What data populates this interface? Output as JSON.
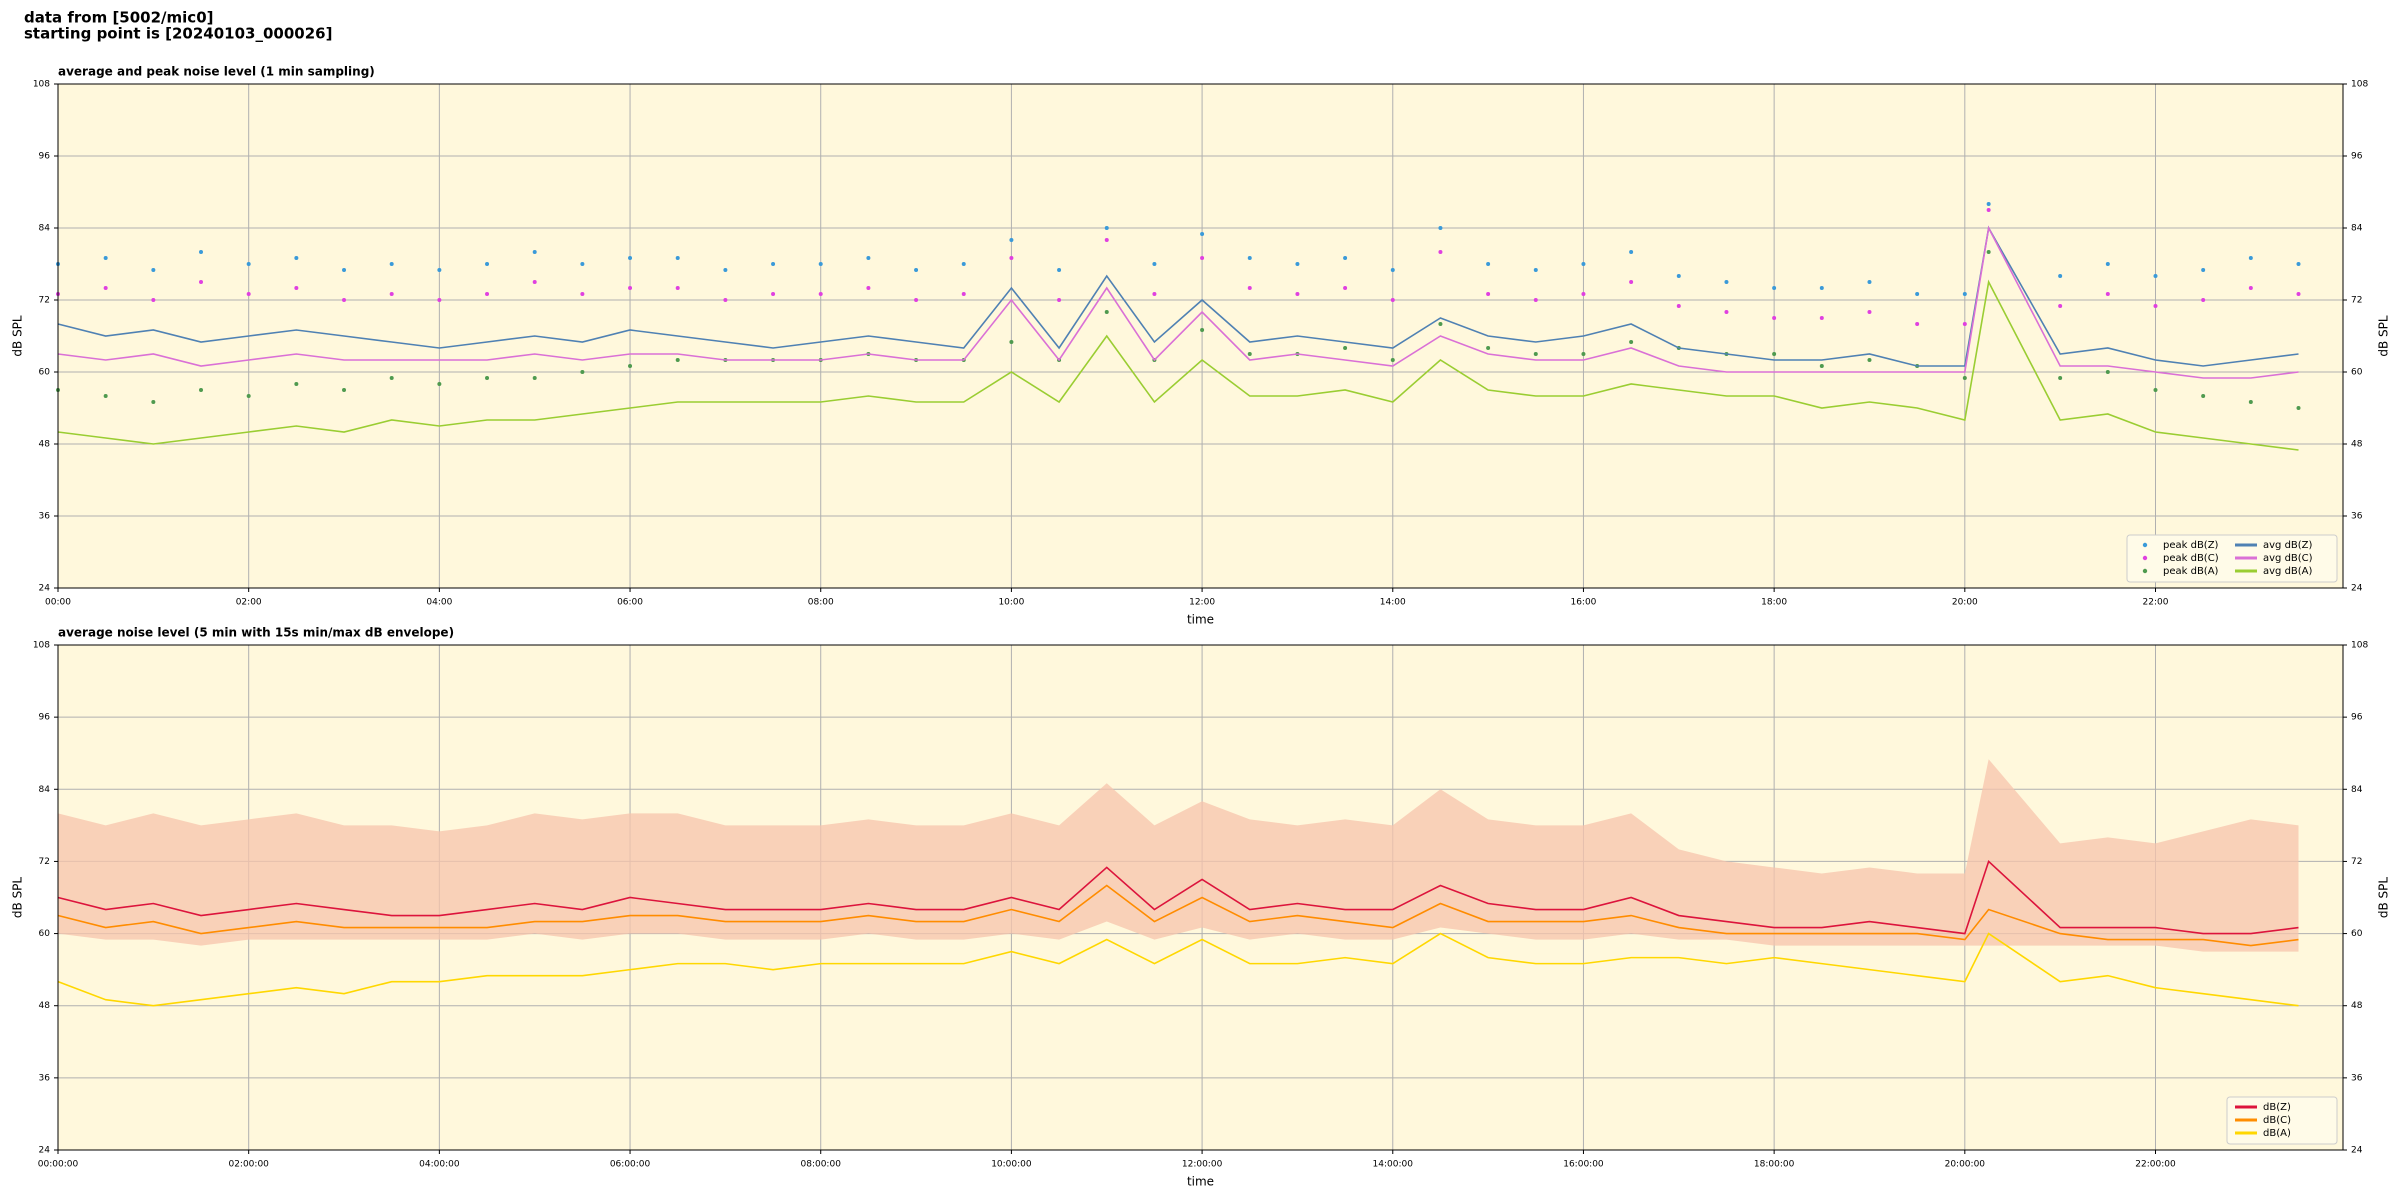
{
  "header": {
    "lines": [
      "data from [5002/mic0]",
      "starting point is [20240103_000026]"
    ]
  },
  "chart_data": [
    {
      "type": "line",
      "title": "average and peak noise level (1 min sampling)",
      "x_label": "time",
      "y_label": "dB SPL",
      "y2_label": "dB SPL",
      "background": "#fff8dc",
      "grid": true,
      "legend": "lower right",
      "legend_columns": 2,
      "xlim": [
        "00:00",
        "23:58"
      ],
      "xticks": [
        "00:00",
        "02:00",
        "04:00",
        "06:00",
        "08:00",
        "10:00",
        "12:00",
        "14:00",
        "16:00",
        "18:00",
        "20:00",
        "22:00"
      ],
      "ylim": [
        24,
        108
      ],
      "yticks": [
        24,
        36,
        48,
        60,
        72,
        84,
        96,
        108
      ],
      "y2lim": [
        24,
        108
      ],
      "y2ticks": [
        24,
        36,
        48,
        60,
        72,
        84,
        96,
        108
      ],
      "x": [
        "00:00",
        "00:30",
        "01:00",
        "01:30",
        "02:00",
        "02:30",
        "03:00",
        "03:30",
        "04:00",
        "04:30",
        "05:00",
        "05:30",
        "06:00",
        "06:30",
        "07:00",
        "07:30",
        "08:00",
        "08:30",
        "09:00",
        "09:30",
        "10:00",
        "10:30",
        "11:00",
        "11:30",
        "12:00",
        "12:30",
        "13:00",
        "13:30",
        "14:00",
        "14:30",
        "15:00",
        "15:30",
        "16:00",
        "16:30",
        "17:00",
        "17:30",
        "18:00",
        "18:30",
        "19:00",
        "19:30",
        "20:00",
        "20:15",
        "21:00",
        "21:30",
        "22:00",
        "22:30",
        "23:00",
        "23:30"
      ],
      "series": [
        {
          "name": "peak dB(Z)",
          "color": "#3a9ad9",
          "marker_only": true,
          "values": [
            78,
            79,
            77,
            80,
            78,
            79,
            77,
            78,
            77,
            78,
            80,
            78,
            79,
            79,
            77,
            78,
            78,
            79,
            77,
            78,
            82,
            77,
            84,
            78,
            83,
            79,
            78,
            79,
            77,
            84,
            78,
            77,
            78,
            80,
            76,
            75,
            74,
            74,
            75,
            73,
            73,
            88,
            76,
            78,
            76,
            77,
            79,
            78
          ]
        },
        {
          "name": "peak dB(C)",
          "color": "#e040e0",
          "marker_only": true,
          "values": [
            73,
            74,
            72,
            75,
            73,
            74,
            72,
            73,
            72,
            73,
            75,
            73,
            74,
            74,
            72,
            73,
            73,
            74,
            72,
            73,
            79,
            72,
            82,
            73,
            79,
            74,
            73,
            74,
            72,
            80,
            73,
            72,
            73,
            75,
            71,
            70,
            69,
            69,
            70,
            68,
            68,
            87,
            71,
            73,
            71,
            72,
            74,
            73
          ]
        },
        {
          "name": "peak dB(A)",
          "color": "#4f9a4f",
          "marker_only": true,
          "values": [
            57,
            56,
            55,
            57,
            56,
            58,
            57,
            59,
            58,
            59,
            59,
            60,
            61,
            62,
            62,
            62,
            62,
            63,
            62,
            62,
            65,
            62,
            70,
            62,
            67,
            63,
            63,
            64,
            62,
            68,
            64,
            63,
            63,
            65,
            64,
            63,
            63,
            61,
            62,
            61,
            59,
            80,
            59,
            60,
            57,
            56,
            55,
            54
          ]
        },
        {
          "name": "avg dB(Z)",
          "color": "#4f81b3",
          "values": [
            68,
            66,
            67,
            65,
            66,
            67,
            66,
            65,
            64,
            65,
            66,
            65,
            67,
            66,
            65,
            64,
            65,
            66,
            65,
            64,
            74,
            64,
            76,
            65,
            72,
            65,
            66,
            65,
            64,
            69,
            66,
            65,
            66,
            68,
            64,
            63,
            62,
            62,
            63,
            61,
            61,
            84,
            63,
            64,
            62,
            61,
            62,
            63
          ]
        },
        {
          "name": "avg dB(C)",
          "color": "#da70d6",
          "values": [
            63,
            62,
            63,
            61,
            62,
            63,
            62,
            62,
            62,
            62,
            63,
            62,
            63,
            63,
            62,
            62,
            62,
            63,
            62,
            62,
            72,
            62,
            74,
            62,
            70,
            62,
            63,
            62,
            61,
            66,
            63,
            62,
            62,
            64,
            61,
            60,
            60,
            60,
            60,
            60,
            60,
            84,
            61,
            61,
            60,
            59,
            59,
            60
          ]
        },
        {
          "name": "avg dB(A)",
          "color": "#9acd32",
          "values": [
            50,
            49,
            48,
            49,
            50,
            51,
            50,
            52,
            51,
            52,
            52,
            53,
            54,
            55,
            55,
            55,
            55,
            56,
            55,
            55,
            60,
            55,
            66,
            55,
            62,
            56,
            56,
            57,
            55,
            62,
            57,
            56,
            56,
            58,
            57,
            56,
            56,
            54,
            55,
            54,
            52,
            75,
            52,
            53,
            50,
            49,
            48,
            47
          ]
        }
      ]
    },
    {
      "type": "line",
      "title": "average noise level (5 min with 15s min/max dB envelope)",
      "x_label": "time",
      "y_label": "dB SPL",
      "y2_label": "dB SPL",
      "background": "#fff8dc",
      "grid": true,
      "legend": "lower right",
      "legend_columns": 1,
      "xlim": [
        "00:00:00",
        "23:58:00"
      ],
      "xticks": [
        "00:00:00",
        "02:00:00",
        "04:00:00",
        "06:00:00",
        "08:00:00",
        "10:00:00",
        "12:00:00",
        "14:00:00",
        "16:00:00",
        "18:00:00",
        "20:00:00",
        "22:00:00"
      ],
      "ylim": [
        24,
        108
      ],
      "yticks": [
        24,
        36,
        48,
        60,
        72,
        84,
        96,
        108
      ],
      "y2lim": [
        24,
        108
      ],
      "y2ticks": [
        24,
        36,
        48,
        60,
        72,
        84,
        96,
        108
      ],
      "x": [
        "00:00:00",
        "00:30:00",
        "01:00:00",
        "01:30:00",
        "02:00:00",
        "02:30:00",
        "03:00:00",
        "03:30:00",
        "04:00:00",
        "04:30:00",
        "05:00:00",
        "05:30:00",
        "06:00:00",
        "06:30:00",
        "07:00:00",
        "07:30:00",
        "08:00:00",
        "08:30:00",
        "09:00:00",
        "09:30:00",
        "10:00:00",
        "10:30:00",
        "11:00:00",
        "11:30:00",
        "12:00:00",
        "12:30:00",
        "13:00:00",
        "13:30:00",
        "14:00:00",
        "14:30:00",
        "15:00:00",
        "15:30:00",
        "16:00:00",
        "16:30:00",
        "17:00:00",
        "17:30:00",
        "18:00:00",
        "18:30:00",
        "19:00:00",
        "19:30:00",
        "20:00:00",
        "20:15:00",
        "21:00:00",
        "21:30:00",
        "22:00:00",
        "22:30:00",
        "23:00:00",
        "23:30:00"
      ],
      "envelope": {
        "color": "#f7c4ac",
        "lower": [
          60,
          59,
          59,
          58,
          59,
          59,
          59,
          59,
          59,
          59,
          60,
          59,
          60,
          60,
          59,
          59,
          59,
          60,
          59,
          59,
          60,
          59,
          62,
          59,
          61,
          59,
          60,
          59,
          59,
          61,
          60,
          59,
          59,
          60,
          59,
          59,
          58,
          58,
          58,
          58,
          58,
          58,
          58,
          58,
          58,
          57,
          57,
          57
        ],
        "upper": [
          80,
          78,
          80,
          78,
          79,
          80,
          78,
          78,
          77,
          78,
          80,
          79,
          80,
          80,
          78,
          78,
          78,
          79,
          78,
          78,
          80,
          78,
          85,
          78,
          82,
          79,
          78,
          79,
          78,
          84,
          79,
          78,
          78,
          80,
          74,
          72,
          71,
          70,
          71,
          70,
          70,
          89,
          75,
          76,
          75,
          77,
          79,
          78
        ]
      },
      "series": [
        {
          "name": "dB(Z)",
          "color": "#dc143c",
          "values": [
            66,
            64,
            65,
            63,
            64,
            65,
            64,
            63,
            63,
            64,
            65,
            64,
            66,
            65,
            64,
            64,
            64,
            65,
            64,
            64,
            66,
            64,
            71,
            64,
            69,
            64,
            65,
            64,
            64,
            68,
            65,
            64,
            64,
            66,
            63,
            62,
            61,
            61,
            62,
            61,
            60,
            72,
            61,
            61,
            61,
            60,
            60,
            61
          ]
        },
        {
          "name": "dB(C)",
          "color": "#ff8c00",
          "values": [
            63,
            61,
            62,
            60,
            61,
            62,
            61,
            61,
            61,
            61,
            62,
            62,
            63,
            63,
            62,
            62,
            62,
            63,
            62,
            62,
            64,
            62,
            68,
            62,
            66,
            62,
            63,
            62,
            61,
            65,
            62,
            62,
            62,
            63,
            61,
            60,
            60,
            60,
            60,
            60,
            59,
            64,
            60,
            59,
            59,
            59,
            58,
            59
          ]
        },
        {
          "name": "dB(A)",
          "color": "#ffd700",
          "values": [
            52,
            49,
            48,
            49,
            50,
            51,
            50,
            52,
            52,
            53,
            53,
            53,
            54,
            55,
            55,
            54,
            55,
            55,
            55,
            55,
            57,
            55,
            59,
            55,
            59,
            55,
            55,
            56,
            55,
            60,
            56,
            55,
            55,
            56,
            56,
            55,
            56,
            55,
            54,
            53,
            52,
            60,
            52,
            53,
            51,
            50,
            49,
            48
          ]
        }
      ]
    }
  ]
}
